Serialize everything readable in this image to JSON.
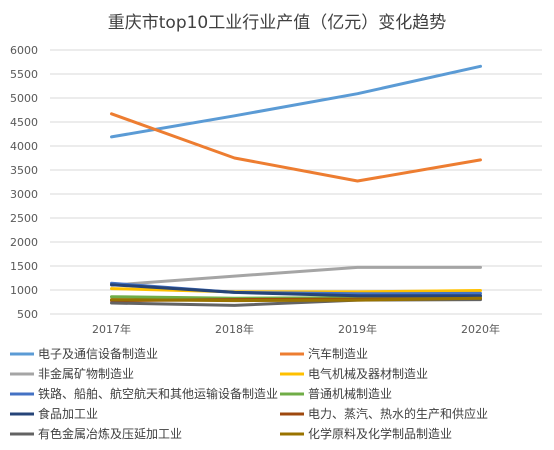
{
  "chart_data": {
    "type": "line",
    "title": "重庆市top10工业行业产值（亿元）变化趋势",
    "categories": [
      "2017年",
      "2018年",
      "2019年",
      "2020年"
    ],
    "ylim": [
      500,
      6000
    ],
    "yticks": [
      500,
      1000,
      1500,
      2000,
      2500,
      3000,
      3500,
      4000,
      4500,
      5000,
      5500,
      6000
    ],
    "grid": true,
    "legend_position": "bottom",
    "series": [
      {
        "name": "电子及通信设备制造业",
        "color": "#5b9bd5",
        "values": [
          4190,
          4630,
          5090,
          5660
        ]
      },
      {
        "name": "汽车制造业",
        "color": "#ed7d31",
        "values": [
          4670,
          3750,
          3270,
          3710
        ]
      },
      {
        "name": "非金属矿物制造业",
        "color": "#a5a5a5",
        "values": [
          1100,
          1290,
          1470,
          1470
        ]
      },
      {
        "name": "电气机械及器材制造业",
        "color": "#ffc000",
        "values": [
          1030,
          960,
          960,
          990
        ]
      },
      {
        "name": "铁路、船舶、航空航天和其他运输设备制造业",
        "color": "#4472c4",
        "values": [
          1140,
          950,
          920,
          930
        ]
      },
      {
        "name": "普通机械制造业",
        "color": "#70ad47",
        "values": [
          860,
          830,
          840,
          860
        ]
      },
      {
        "name": "食品加工业",
        "color": "#264478",
        "values": [
          1110,
          950,
          880,
          880
        ]
      },
      {
        "name": "电力、蒸汽、热水的生产和供应业",
        "color": "#9e480e",
        "values": [
          780,
          800,
          810,
          820
        ]
      },
      {
        "name": "有色金属冶炼及压延加工业",
        "color": "#636363",
        "values": [
          730,
          680,
          790,
          800
        ]
      },
      {
        "name": "化学原料及化学制品制造业",
        "color": "#997300",
        "values": [
          800,
          780,
          790,
          830
        ]
      }
    ]
  }
}
